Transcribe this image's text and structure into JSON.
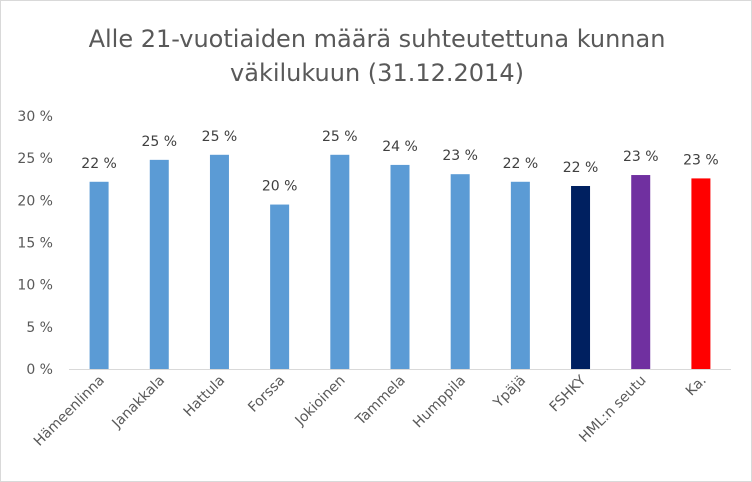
{
  "chart_data": {
    "type": "bar",
    "title_lines": [
      "Alle 21-vuotiaiden määrä suhteutettuna kunnan",
      "väkilukuun (31.12.2014)"
    ],
    "categories": [
      "Hämeenlinna",
      "Janakkala",
      "Hattula",
      "Forssa",
      "Jokioinen",
      "Tammela",
      "Humppila",
      "Ypäjä",
      "FSHKY",
      "HML:n seutu",
      "Ka."
    ],
    "values": [
      22.2,
      24.8,
      25.4,
      19.5,
      25.4,
      24.2,
      23.1,
      22.2,
      21.7,
      23.0,
      22.6
    ],
    "data_labels": [
      "22 %",
      "25 %",
      "25 %",
      "20 %",
      "25 %",
      "24 %",
      "23 %",
      "22 %",
      "22 %",
      "23 %",
      "23 %"
    ],
    "colors": [
      "#5b9bd5",
      "#5b9bd5",
      "#5b9bd5",
      "#5b9bd5",
      "#5b9bd5",
      "#5b9bd5",
      "#5b9bd5",
      "#5b9bd5",
      "#002060",
      "#7030a0",
      "#ff0000"
    ],
    "y_ticks": [
      0,
      5,
      10,
      15,
      20,
      25,
      30
    ],
    "y_tick_labels": [
      "0 %",
      "5 %",
      "10 %",
      "15 %",
      "20 %",
      "25 %",
      "30 %"
    ],
    "ylim": [
      0,
      30
    ],
    "grid": false,
    "legend": "none",
    "xlabel": "",
    "ylabel": ""
  }
}
